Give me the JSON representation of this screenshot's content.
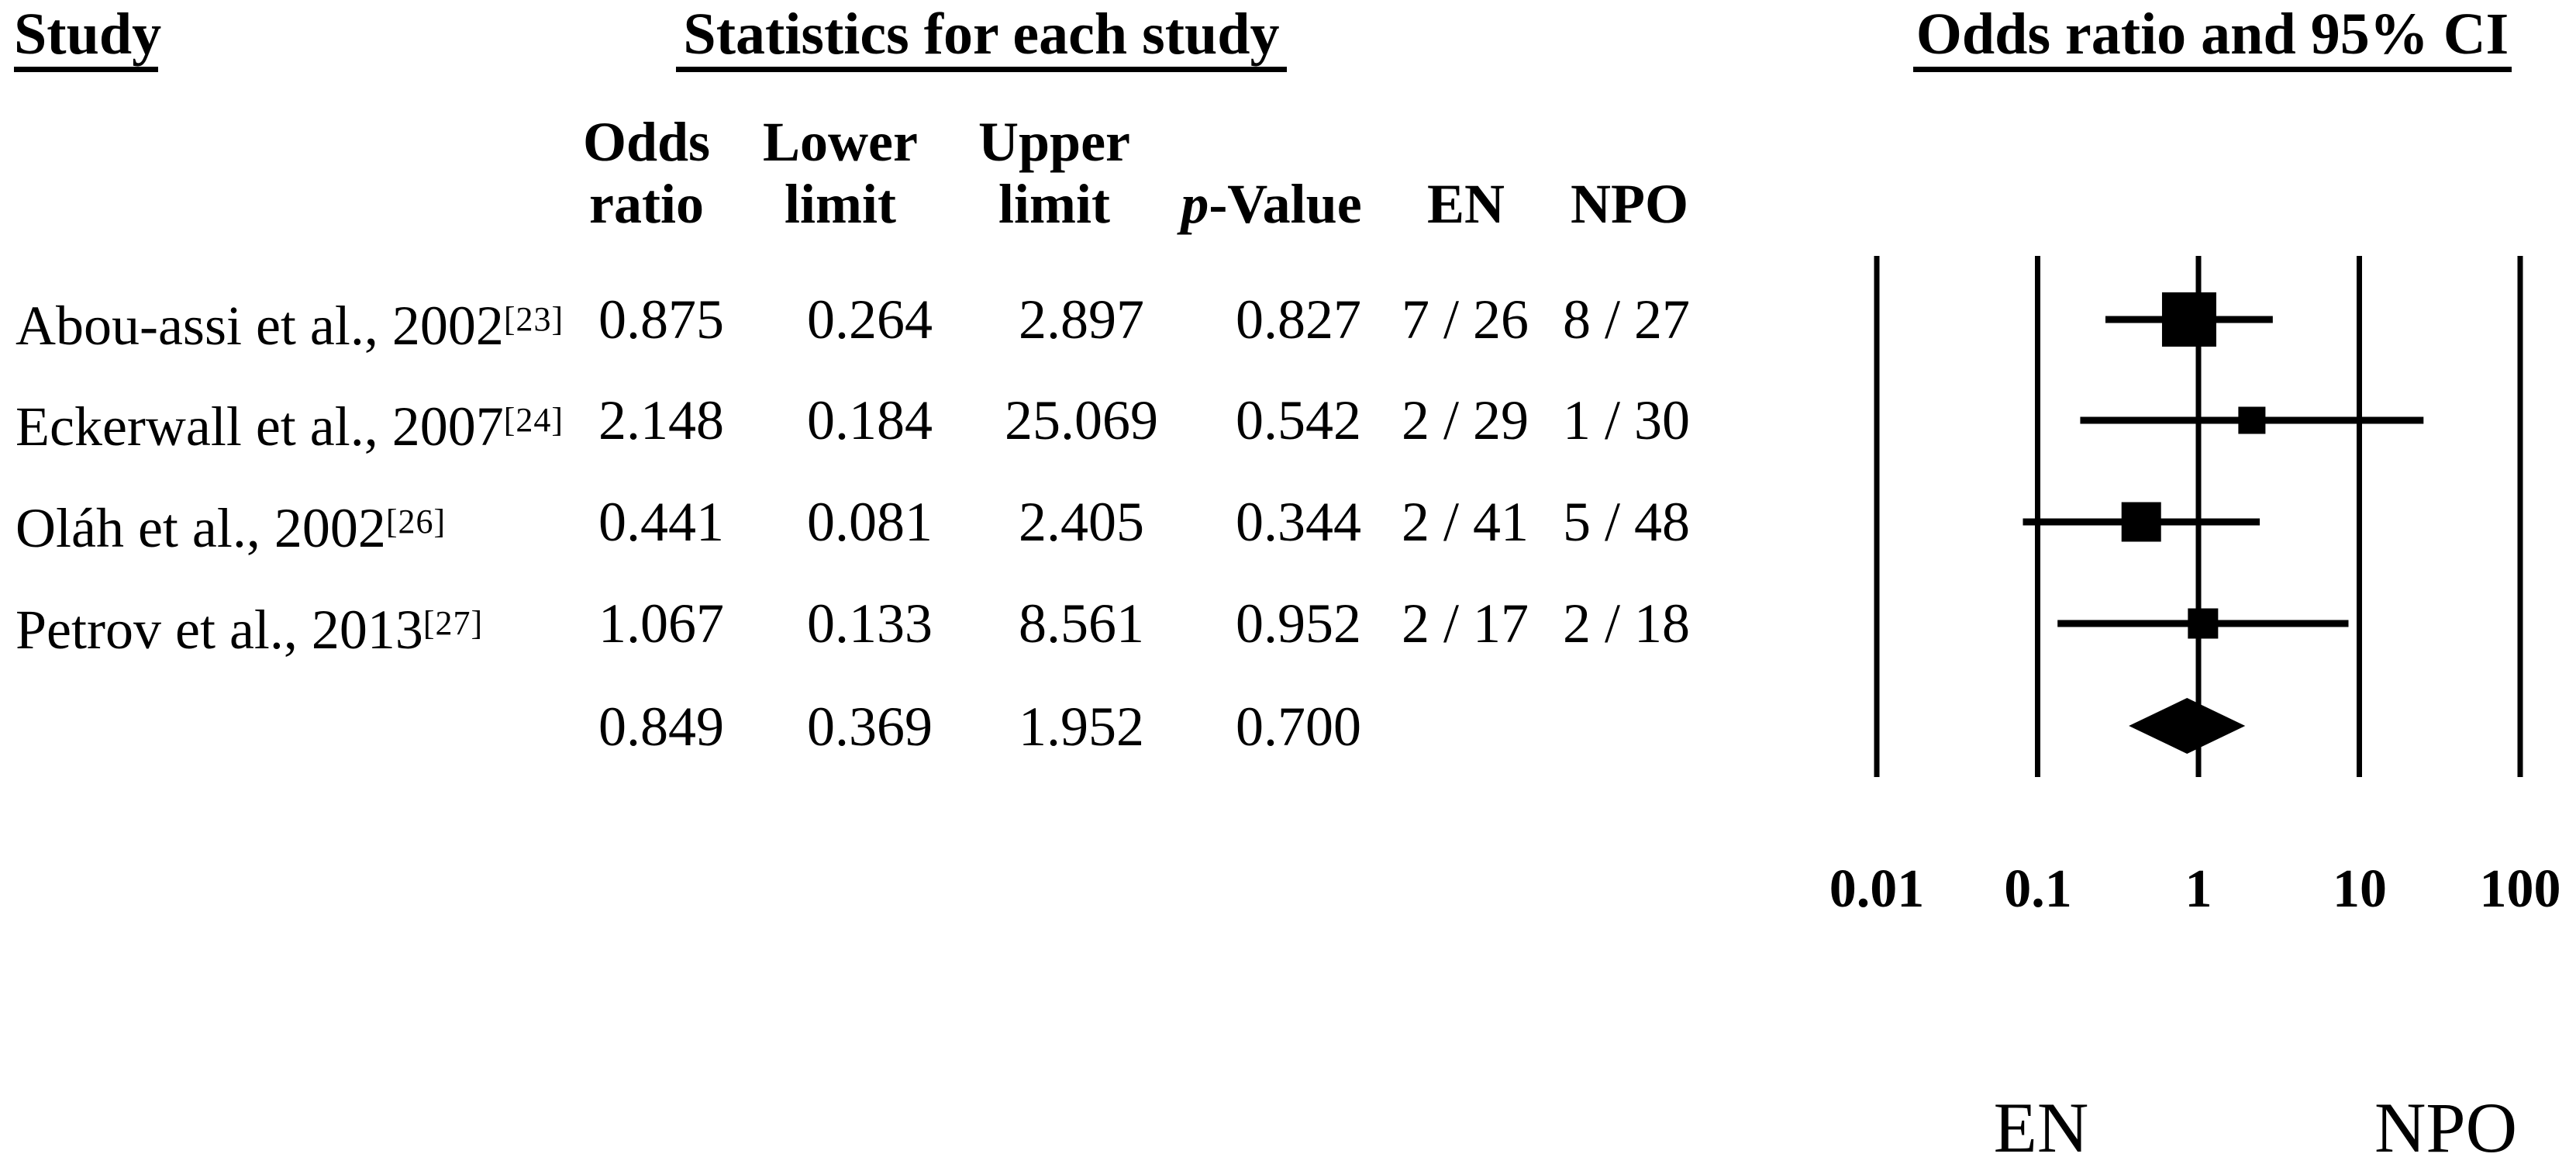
{
  "titles": {
    "study": "Study",
    "stats": "Statistics for each study",
    "or_ci": "Odds ratio and 95% CI"
  },
  "header": {
    "odds": "Odds",
    "ratio": "ratio",
    "lower": "Lower",
    "upper": "Upper",
    "limit": "limit",
    "pvalue_p": "p",
    "pvalue_rest": "-Value",
    "en": "EN",
    "npo": "NPO"
  },
  "table": {
    "rows": [
      {
        "study": "Abou-assi et al., 2002",
        "ref": "[23]",
        "or": "0.875",
        "lower": "0.264",
        "upper": "2.897",
        "p": "0.827",
        "en": "7 / 26",
        "npo": "8 / 27"
      },
      {
        "study": "Eckerwall et al., 2007",
        "ref": "[24]",
        "or": "2.148",
        "lower": "0.184",
        "upper": "25.069",
        "p": "0.542",
        "en": "2 / 29",
        "npo": "1 / 30"
      },
      {
        "study": "Oláh et al., 2002",
        "ref": "[26]",
        "or": "0.441",
        "lower": "0.081",
        "upper": "2.405",
        "p": "0.344",
        "en": "2 / 41",
        "npo": "5 / 48"
      },
      {
        "study": "Petrov et al., 2013",
        "ref": "[27]",
        "or": "1.067",
        "lower": "0.133",
        "upper": "8.561",
        "p": "0.952",
        "en": "2 / 17",
        "npo": "2 / 18"
      }
    ],
    "summary_row": {
      "study": "",
      "ref": "",
      "or": "0.849",
      "lower": "0.369",
      "upper": "1.952",
      "p": "0.700",
      "en": "",
      "npo": ""
    }
  },
  "chart_data": {
    "type": "forest",
    "title": "Odds ratio and 95% CI",
    "x_scale": "log10",
    "x_ticks": [
      "0.01",
      "0.1",
      "1",
      "10",
      "100"
    ],
    "x_tick_values": [
      0.01,
      0.1,
      1,
      10,
      100
    ],
    "xlim": [
      0.01,
      100
    ],
    "grid": "vertical-lines-at-ticks",
    "marker_color": "#000000",
    "arm_labels": {
      "left": "EN",
      "right": "NPO"
    },
    "studies": [
      {
        "name": "Abou-assi et al., 2002",
        "or": 0.875,
        "lower": 0.264,
        "upper": 2.897,
        "p": 0.827,
        "en_events": "7/26",
        "npo_events": "8/27"
      },
      {
        "name": "Eckerwall et al., 2007",
        "or": 2.148,
        "lower": 0.184,
        "upper": 25.069,
        "p": 0.542,
        "en_events": "2/29",
        "npo_events": "1/30"
      },
      {
        "name": "Oláh et al., 2002",
        "or": 0.441,
        "lower": 0.081,
        "upper": 2.405,
        "p": 0.344,
        "en_events": "2/41",
        "npo_events": "5/48"
      },
      {
        "name": "Petrov et al., 2013",
        "or": 1.067,
        "lower": 0.133,
        "upper": 8.561,
        "p": 0.952,
        "en_events": "2/17",
        "npo_events": "2/18"
      }
    ],
    "summary": {
      "or": 0.849,
      "lower": 0.369,
      "upper": 1.952,
      "p": 0.7
    }
  }
}
